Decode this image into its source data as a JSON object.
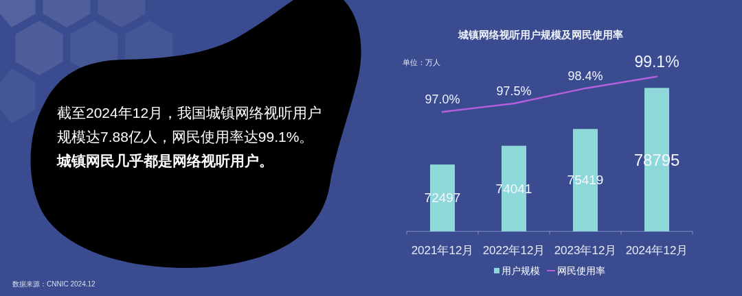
{
  "chart_data": {
    "type": "bar",
    "title": "城镇网络视听用户规模及网民使用率",
    "categories": [
      "2021年12月",
      "2022年12月",
      "2023年12月",
      "2024年12月"
    ],
    "series": [
      {
        "name": "用户规模",
        "color": "#8fd8d9",
        "values": [
          72497,
          74041,
          75419,
          78795
        ],
        "value_labels": [
          "72497",
          "74041",
          "75419",
          "78795"
        ]
      },
      {
        "name": "网民使用率",
        "type": "line",
        "axis": "y2",
        "color": "#b55fe0",
        "values": [
          97.0,
          97.5,
          98.4,
          99.1
        ],
        "value_labels": [
          "97.0%",
          "97.5%",
          "98.4%",
          "99.1%"
        ]
      }
    ],
    "ylim": [
      67000,
      78795
    ],
    "tick_labels": "x",
    "legend": "bottom",
    "line_style": "solid",
    "annotations": [
      "截至2024年12月，我国城镇网络视听用户规模达7.88亿人，网民使用率达99.1%。",
      "城镇网民几乎都是网络视听用户。",
      "数据来源：CNNIC 2024.12",
      "单位：万人"
    ]
  }
}
